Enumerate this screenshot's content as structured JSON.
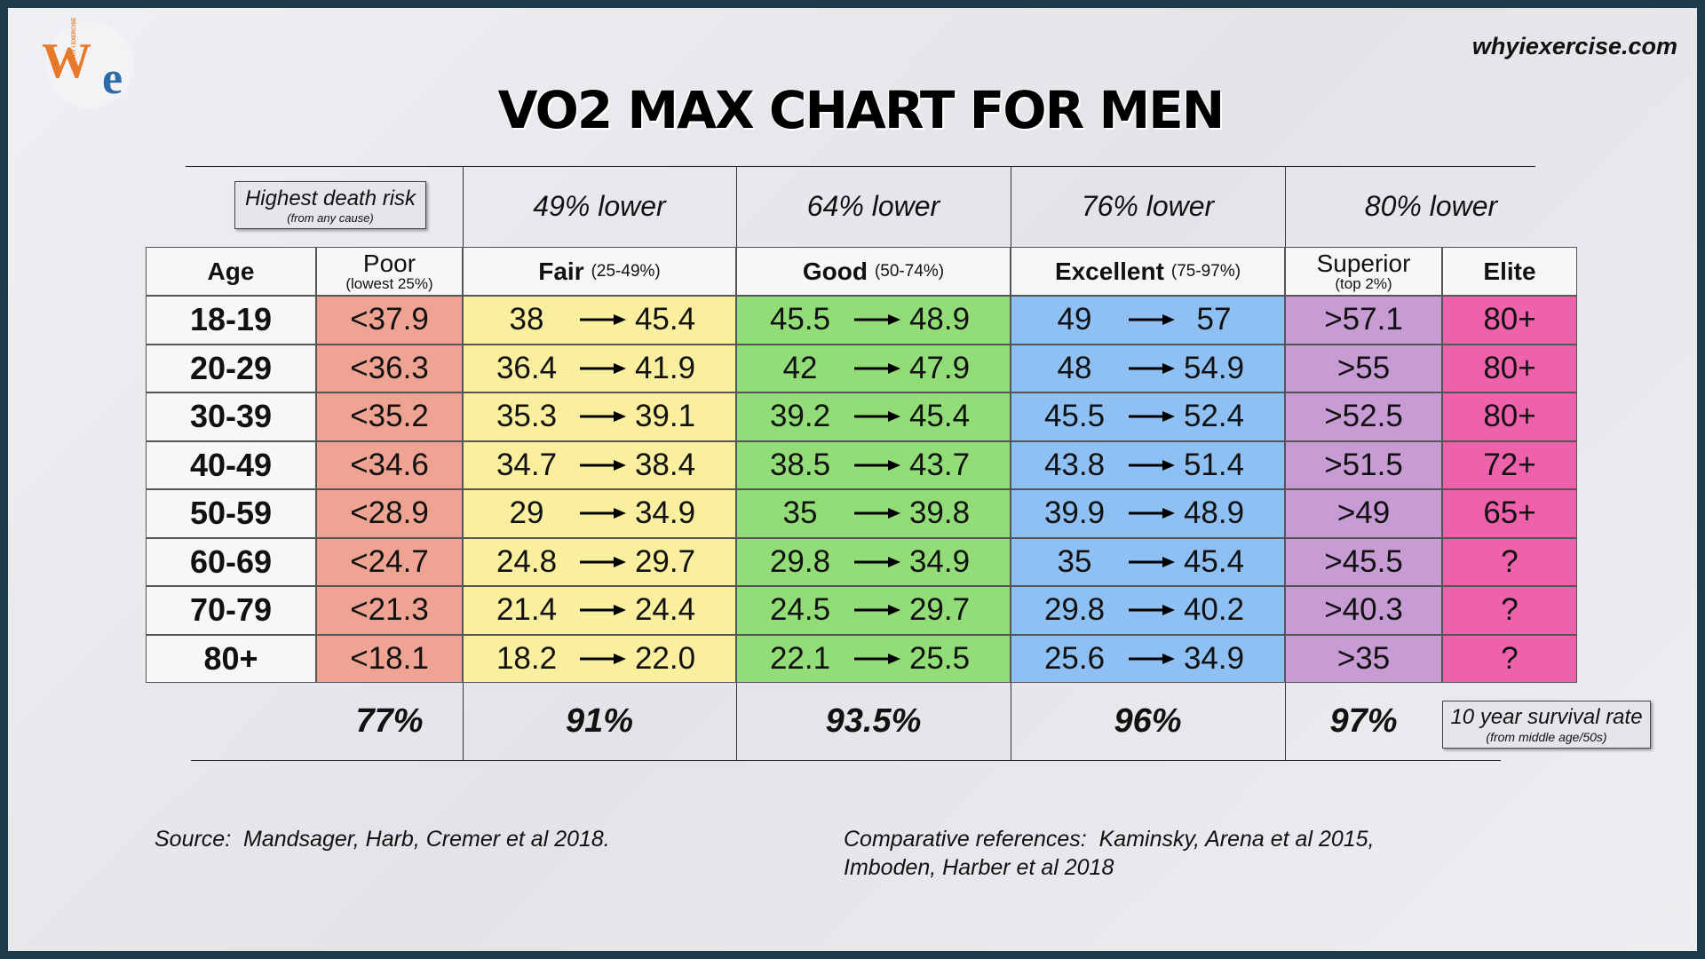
{
  "logo": {
    "letter1": "W",
    "letter2": "e",
    "tagline": "WHY I EXERCISE"
  },
  "site": "whyiexercise.com",
  "title": "VO2 MAX CHART FOR MEN",
  "risk_box": {
    "label": "Highest death risk",
    "note": "(from any cause)"
  },
  "risk": [
    "49% lower",
    "64% lower",
    "76% lower",
    "80% lower"
  ],
  "header": [
    {
      "name": "Age"
    },
    {
      "name": "Poor",
      "note": "(lowest 25%)"
    },
    {
      "name": "Fair",
      "note": "(25-49%)"
    },
    {
      "name": "Good",
      "note": "(50-74%)"
    },
    {
      "name": "Excellent",
      "note": "(75-97%)"
    },
    {
      "name": "Superior",
      "note": "(top 2%)"
    },
    {
      "name": "Elite"
    }
  ],
  "rows": [
    {
      "age": "18-19",
      "poor": "<37.9",
      "fair": [
        "38",
        "45.4"
      ],
      "good": [
        "45.5",
        "48.9"
      ],
      "excellent": [
        "49",
        "57"
      ],
      "superior": ">57.1",
      "elite": "80+"
    },
    {
      "age": "20-29",
      "poor": "<36.3",
      "fair": [
        "36.4",
        "41.9"
      ],
      "good": [
        "42",
        "47.9"
      ],
      "excellent": [
        "48",
        "54.9"
      ],
      "superior": ">55",
      "elite": "80+"
    },
    {
      "age": "30-39",
      "poor": "<35.2",
      "fair": [
        "35.3",
        "39.1"
      ],
      "good": [
        "39.2",
        "45.4"
      ],
      "excellent": [
        "45.5",
        "52.4"
      ],
      "superior": ">52.5",
      "elite": "80+"
    },
    {
      "age": "40-49",
      "poor": "<34.6",
      "fair": [
        "34.7",
        "38.4"
      ],
      "good": [
        "38.5",
        "43.7"
      ],
      "excellent": [
        "43.8",
        "51.4"
      ],
      "superior": ">51.5",
      "elite": "72+"
    },
    {
      "age": "50-59",
      "poor": "<28.9",
      "fair": [
        "29",
        "34.9"
      ],
      "good": [
        "35",
        "39.8"
      ],
      "excellent": [
        "39.9",
        "48.9"
      ],
      "superior": ">49",
      "elite": "65+"
    },
    {
      "age": "60-69",
      "poor": "<24.7",
      "fair": [
        "24.8",
        "29.7"
      ],
      "good": [
        "29.8",
        "34.9"
      ],
      "excellent": [
        "35",
        "45.4"
      ],
      "superior": ">45.5",
      "elite": "?"
    },
    {
      "age": "70-79",
      "poor": "<21.3",
      "fair": [
        "21.4",
        "24.4"
      ],
      "good": [
        "24.5",
        "29.7"
      ],
      "excellent": [
        "29.8",
        "40.2"
      ],
      "superior": ">40.3",
      "elite": "?"
    },
    {
      "age": "80+",
      "poor": "<18.1",
      "fair": [
        "18.2",
        "22.0"
      ],
      "good": [
        "22.1",
        "25.5"
      ],
      "excellent": [
        "25.6",
        "34.9"
      ],
      "superior": ">35",
      "elite": "?"
    }
  ],
  "survival": [
    "77%",
    "91%",
    "93.5%",
    "96%",
    "97%"
  ],
  "survival_box": {
    "label": "10 year survival rate",
    "note": "(from middle age/50s)"
  },
  "source": "Source:  Mandsager, Harb, Cremer et al 2018.",
  "references": [
    "Comparative references:  Kaminsky, Arena et al 2015,",
    "Imboden, Harber et al 2018"
  ]
}
